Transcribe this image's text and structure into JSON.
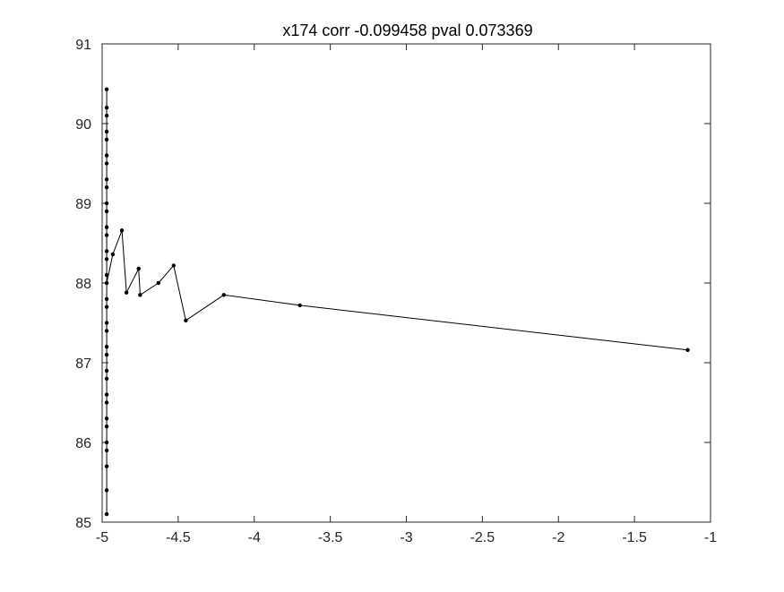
{
  "chart_data": {
    "type": "line",
    "title": "x174 corr -0.099458 pval 0.073369",
    "xlabel": "",
    "ylabel": "",
    "xlim": [
      -5,
      -1
    ],
    "ylim": [
      85,
      91
    ],
    "xticks": [
      -5,
      -4.5,
      -4,
      -3.5,
      -3,
      -2.5,
      -2,
      -1.5,
      -1
    ],
    "yticks": [
      85,
      86,
      87,
      88,
      89,
      90,
      91
    ],
    "xtick_labels": [
      "-5",
      "-4.5",
      "-4",
      "-3.5",
      "-3",
      "-2.5",
      "-2",
      "-1.5",
      "-1"
    ],
    "ytick_labels": [
      "85",
      "86",
      "87",
      "88",
      "89",
      "90",
      "91"
    ],
    "grid": false,
    "series": [
      {
        "color": "#000000",
        "marker": "dot",
        "x": [
          -4.97,
          -4.97,
          -4.97,
          -4.97,
          -4.97,
          -4.97,
          -4.97,
          -4.97,
          -4.97,
          -4.97,
          -4.97,
          -4.97,
          -4.97,
          -4.97,
          -4.97,
          -4.97,
          -4.97,
          -4.97,
          -4.97,
          -4.97,
          -4.97,
          -4.97,
          -4.97,
          -4.97,
          -4.97,
          -4.97,
          -4.97,
          -4.97,
          -4.97,
          -4.97,
          -4.97,
          -4.97,
          -4.97,
          -4.97,
          -4.97,
          -4.93,
          -4.87,
          -4.84,
          -4.76,
          -4.75,
          -4.75,
          -4.63,
          -4.53,
          -4.45,
          -4.2,
          -3.7,
          -1.15
        ],
        "y": [
          85.1,
          85.4,
          85.7,
          85.9,
          86.2,
          86.5,
          86.8,
          87.1,
          87.4,
          87.7,
          88.0,
          88.3,
          88.6,
          88.9,
          89.2,
          89.5,
          89.8,
          90.1,
          90.43,
          90.2,
          89.9,
          89.6,
          89.3,
          89.0,
          88.7,
          88.4,
          88.1,
          87.8,
          87.5,
          87.2,
          86.9,
          86.6,
          86.3,
          86.0,
          88.0,
          88.36,
          88.66,
          87.88,
          88.18,
          87.85,
          87.85,
          88.0,
          88.22,
          87.53,
          87.85,
          87.72,
          87.16
        ]
      }
    ]
  }
}
